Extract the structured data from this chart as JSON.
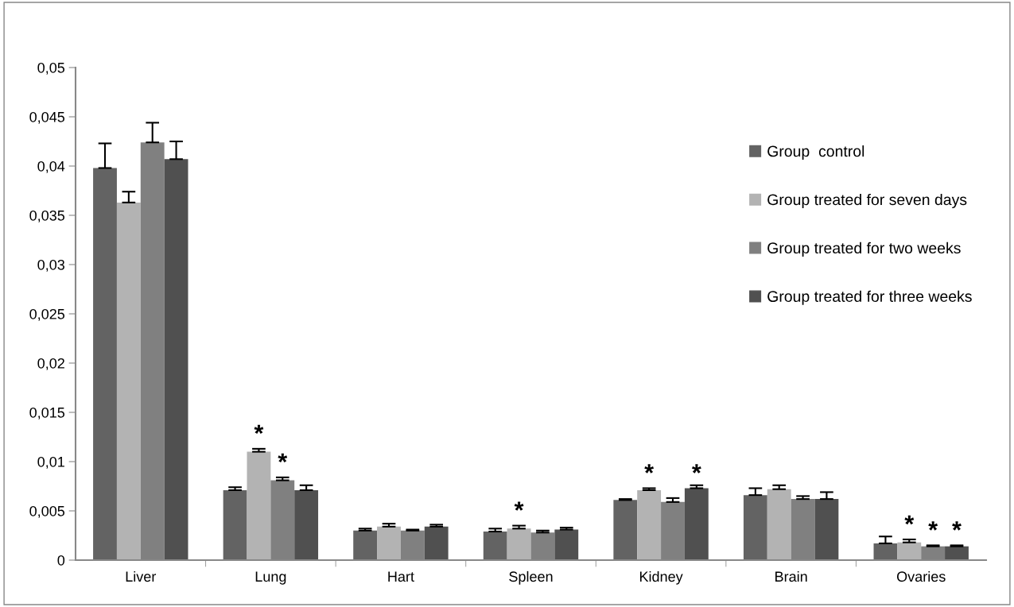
{
  "chart_data": {
    "type": "bar",
    "categories": [
      "Liver",
      "Lung",
      "Hart",
      "Spleen",
      "Kidney",
      "Brain",
      "Ovaries"
    ],
    "series": [
      {
        "name": "Group  control",
        "color": "#636363",
        "values": [
          0.0398,
          0.0071,
          0.003,
          0.0029,
          0.0061,
          0.0066,
          0.0017
        ],
        "errors": [
          [
            0.0398,
            0.0423
          ],
          [
            0.0071,
            0.0074
          ],
          [
            0.003,
            0.0032
          ],
          [
            0.0029,
            0.0032
          ],
          [
            0.0061,
            0.0062
          ],
          [
            0.0066,
            0.0073
          ],
          [
            0.0017,
            0.0024
          ]
        ]
      },
      {
        "name": "Group treated for seven days",
        "color": "#b3b3b3",
        "values": [
          0.0363,
          0.011,
          0.0034,
          0.0032,
          0.0071,
          0.0072,
          0.0018
        ],
        "errors": [
          [
            0.0363,
            0.0374
          ],
          [
            0.011,
            0.0113
          ],
          [
            0.0034,
            0.0037
          ],
          [
            0.0032,
            0.0035
          ],
          [
            0.0071,
            0.0073
          ],
          [
            0.0072,
            0.0076
          ],
          [
            0.0018,
            0.0021
          ]
        ]
      },
      {
        "name": "Group treated for two weeks",
        "color": "#808080",
        "values": [
          0.0424,
          0.0081,
          0.003,
          0.0028,
          0.0059,
          0.0062,
          0.0014
        ],
        "errors": [
          [
            0.0424,
            0.0444
          ],
          [
            0.0081,
            0.0084
          ],
          [
            0.003,
            0.0031
          ],
          [
            0.0028,
            0.003
          ],
          [
            0.0059,
            0.0063
          ],
          [
            0.0062,
            0.0065
          ],
          [
            0.0014,
            0.0015
          ]
        ]
      },
      {
        "name": "Group treated for three weeks",
        "color": "#505050",
        "values": [
          0.0407,
          0.0071,
          0.0034,
          0.0031,
          0.0073,
          0.0062,
          0.0014
        ],
        "errors": [
          [
            0.0407,
            0.0425
          ],
          [
            0.0071,
            0.0076
          ],
          [
            0.0034,
            0.0036
          ],
          [
            0.0031,
            0.0033
          ],
          [
            0.0073,
            0.0076
          ],
          [
            0.0062,
            0.0069
          ],
          [
            0.0014,
            0.0015
          ]
        ]
      }
    ],
    "ylim": [
      0,
      0.05
    ],
    "yticks": [
      {
        "value": 0,
        "label": "0"
      },
      {
        "value": 0.005,
        "label": "0,005"
      },
      {
        "value": 0.01,
        "label": "0,01"
      },
      {
        "value": 0.015,
        "label": "0,015"
      },
      {
        "value": 0.02,
        "label": "0,02"
      },
      {
        "value": 0.025,
        "label": "0,025"
      },
      {
        "value": 0.03,
        "label": "0,03"
      },
      {
        "value": 0.035,
        "label": "0,035"
      },
      {
        "value": 0.04,
        "label": "0,04"
      },
      {
        "value": 0.045,
        "label": "0,045"
      },
      {
        "value": 0.05,
        "label": "0,05"
      }
    ],
    "grid": false,
    "legend": "right",
    "annotations": [
      {
        "text": "*",
        "x": "Lung",
        "y": 0.0113
      },
      {
        "text": "*",
        "x": "Lung",
        "y": 0.0084
      },
      {
        "text": "*",
        "x": "Spleen",
        "y": 0.0035
      },
      {
        "text": "*",
        "x": "Kidney",
        "y": 0.0073
      },
      {
        "text": "*",
        "x": "Kidney",
        "y": 0.0073
      },
      {
        "text": "*",
        "x": "Ovaries",
        "y": 0.0021
      },
      {
        "text": "*",
        "x": "Ovaries",
        "y": 0.0015
      },
      {
        "text": "*",
        "x": "Ovaries",
        "y": 0.0015
      }
    ]
  }
}
